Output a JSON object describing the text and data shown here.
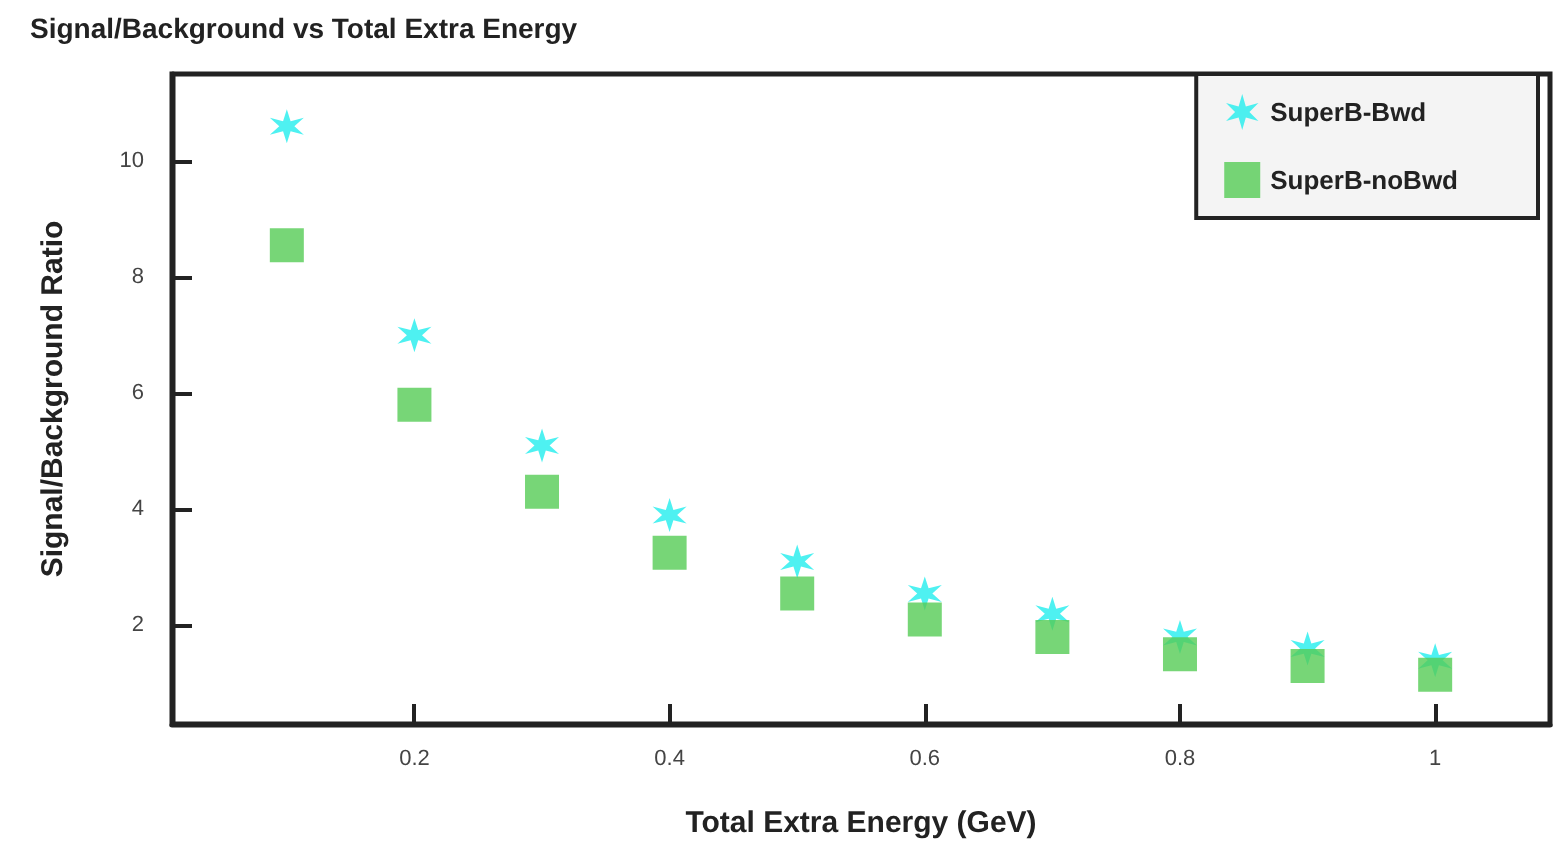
{
  "chart_data": {
    "type": "scatter",
    "title": "Signal/Background vs Total Extra Energy",
    "xlabel": "Total Extra Energy (GeV)",
    "ylabel": "Signal/Background Ratio",
    "x": [
      0.1,
      0.2,
      0.3,
      0.4,
      0.5,
      0.6,
      0.7,
      0.8,
      0.9,
      1.0
    ],
    "series": [
      {
        "name": "SuperB-Bwd",
        "color": "#22eeee",
        "marker": "cross",
        "values": [
          10.6,
          7.0,
          5.1,
          3.9,
          3.1,
          2.55,
          2.2,
          1.8,
          1.6,
          1.4
        ]
      },
      {
        "name": "SuperB-noBwd",
        "color": "#55cc55",
        "marker": "square",
        "values": [
          8.55,
          5.8,
          4.3,
          3.25,
          2.55,
          2.1,
          1.8,
          1.5,
          1.3,
          1.15
        ]
      }
    ],
    "xlim": [
      0.01,
      1.09
    ],
    "xticks": [
      0.2,
      0.4,
      0.6,
      0.8,
      1
    ],
    "ylim": [
      0.3,
      11.5
    ],
    "yticks": [
      2,
      4,
      6,
      8,
      10
    ],
    "grid": false,
    "legend": "top right"
  }
}
